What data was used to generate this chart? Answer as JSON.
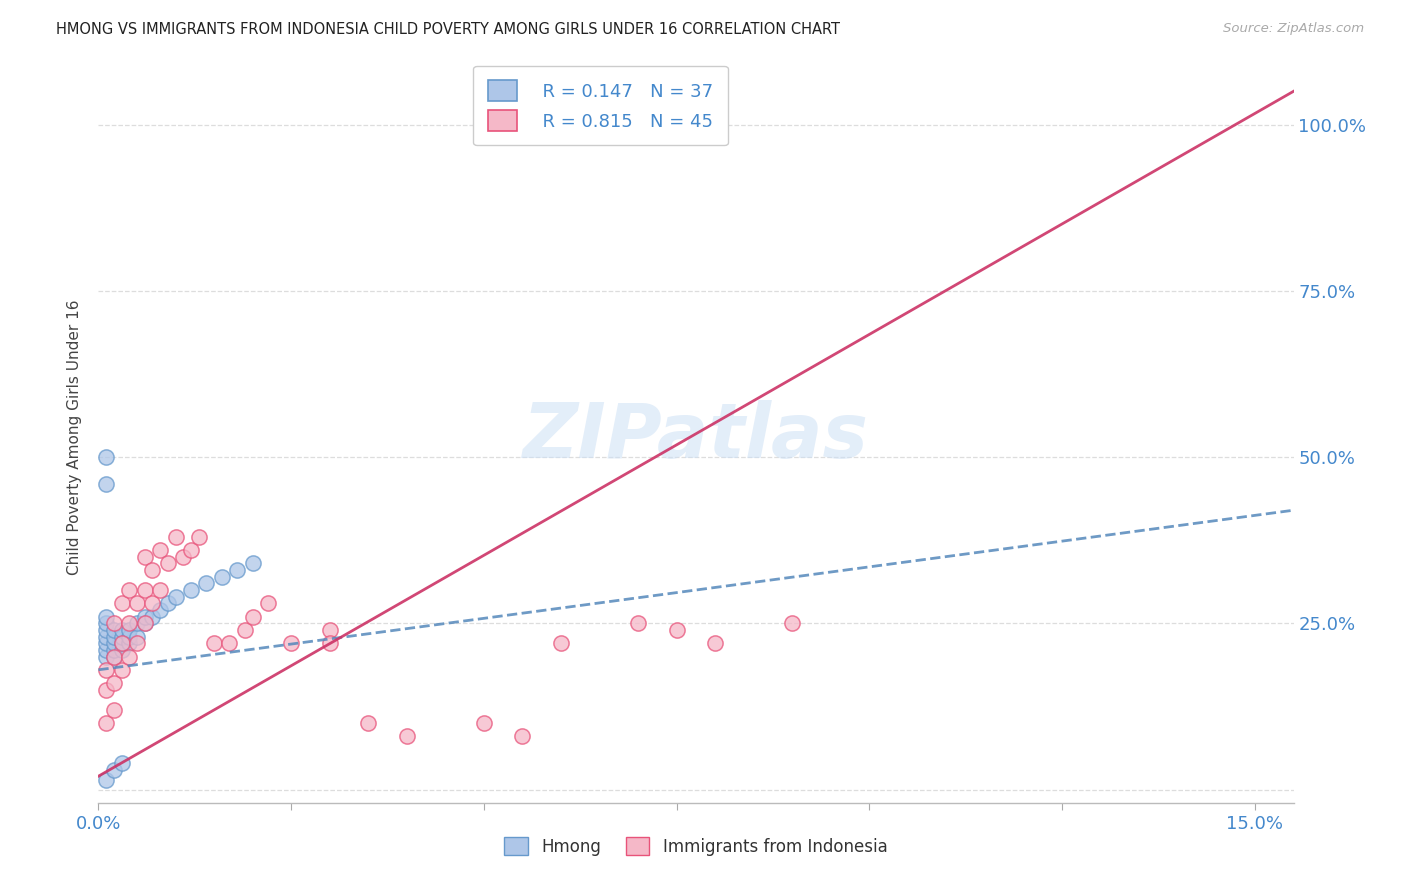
{
  "title": "HMONG VS IMMIGRANTS FROM INDONESIA CHILD POVERTY AMONG GIRLS UNDER 16 CORRELATION CHART",
  "source": "Source: ZipAtlas.com",
  "ylabel": "Child Poverty Among Girls Under 16",
  "xlim": [
    0.0,
    0.155
  ],
  "ylim": [
    -0.02,
    1.08
  ],
  "xtick_positions": [
    0.0,
    0.025,
    0.05,
    0.075,
    0.1,
    0.125,
    0.15
  ],
  "xticklabels": [
    "0.0%",
    "",
    "",
    "",
    "",
    "",
    "15.0%"
  ],
  "ytick_positions": [
    0.0,
    0.25,
    0.5,
    0.75,
    1.0
  ],
  "yticklabels_right": [
    "",
    "25.0%",
    "50.0%",
    "75.0%",
    "100.0%"
  ],
  "color_hmong_fill": "#aec6e8",
  "color_hmong_edge": "#6699cc",
  "color_indonesia_fill": "#f5b8c8",
  "color_indonesia_edge": "#e8537a",
  "color_hmong_line": "#5588bb",
  "color_indonesia_line": "#cc3366",
  "color_axis_blue": "#4488cc",
  "color_text": "#333333",
  "color_source": "#aaaaaa",
  "color_grid": "#dddddd",
  "watermark_color": "#cce0f5",
  "legend_label1": "Hmong",
  "legend_label2": "Immigrants from Indonesia",
  "hmong_x": [
    0.001,
    0.001,
    0.001,
    0.001,
    0.001,
    0.001,
    0.001,
    0.002,
    0.002,
    0.002,
    0.002,
    0.002,
    0.003,
    0.003,
    0.003,
    0.003,
    0.004,
    0.004,
    0.004,
    0.005,
    0.005,
    0.006,
    0.006,
    0.007,
    0.008,
    0.009,
    0.01,
    0.012,
    0.014,
    0.016,
    0.018,
    0.02,
    0.001,
    0.001,
    0.001,
    0.002,
    0.003
  ],
  "hmong_y": [
    0.2,
    0.21,
    0.22,
    0.23,
    0.24,
    0.25,
    0.26,
    0.2,
    0.21,
    0.22,
    0.23,
    0.24,
    0.21,
    0.22,
    0.23,
    0.24,
    0.22,
    0.23,
    0.24,
    0.23,
    0.25,
    0.25,
    0.26,
    0.26,
    0.27,
    0.28,
    0.29,
    0.3,
    0.31,
    0.32,
    0.33,
    0.34,
    0.46,
    0.5,
    0.015,
    0.03,
    0.04
  ],
  "indonesia_x": [
    0.001,
    0.001,
    0.001,
    0.002,
    0.002,
    0.002,
    0.002,
    0.003,
    0.003,
    0.003,
    0.004,
    0.004,
    0.004,
    0.005,
    0.005,
    0.006,
    0.006,
    0.006,
    0.007,
    0.007,
    0.008,
    0.008,
    0.009,
    0.01,
    0.011,
    0.012,
    0.013,
    0.015,
    0.017,
    0.019,
    0.02,
    0.022,
    0.025,
    0.03,
    0.03,
    0.035,
    0.04,
    0.05,
    0.055,
    0.06,
    0.07,
    0.075,
    0.08,
    0.09
  ],
  "indonesia_y": [
    0.1,
    0.15,
    0.18,
    0.12,
    0.16,
    0.2,
    0.25,
    0.18,
    0.22,
    0.28,
    0.2,
    0.25,
    0.3,
    0.22,
    0.28,
    0.25,
    0.3,
    0.35,
    0.28,
    0.33,
    0.3,
    0.36,
    0.34,
    0.38,
    0.35,
    0.36,
    0.38,
    0.22,
    0.22,
    0.24,
    0.26,
    0.28,
    0.22,
    0.24,
    0.22,
    0.1,
    0.08,
    0.1,
    0.08,
    0.22,
    0.25,
    0.24,
    0.22,
    0.25
  ],
  "hmong_line_x": [
    0.0,
    0.155
  ],
  "hmong_line_y": [
    0.18,
    0.42
  ],
  "indonesia_line_x": [
    0.0,
    0.155
  ],
  "indonesia_line_y": [
    0.02,
    1.05
  ]
}
